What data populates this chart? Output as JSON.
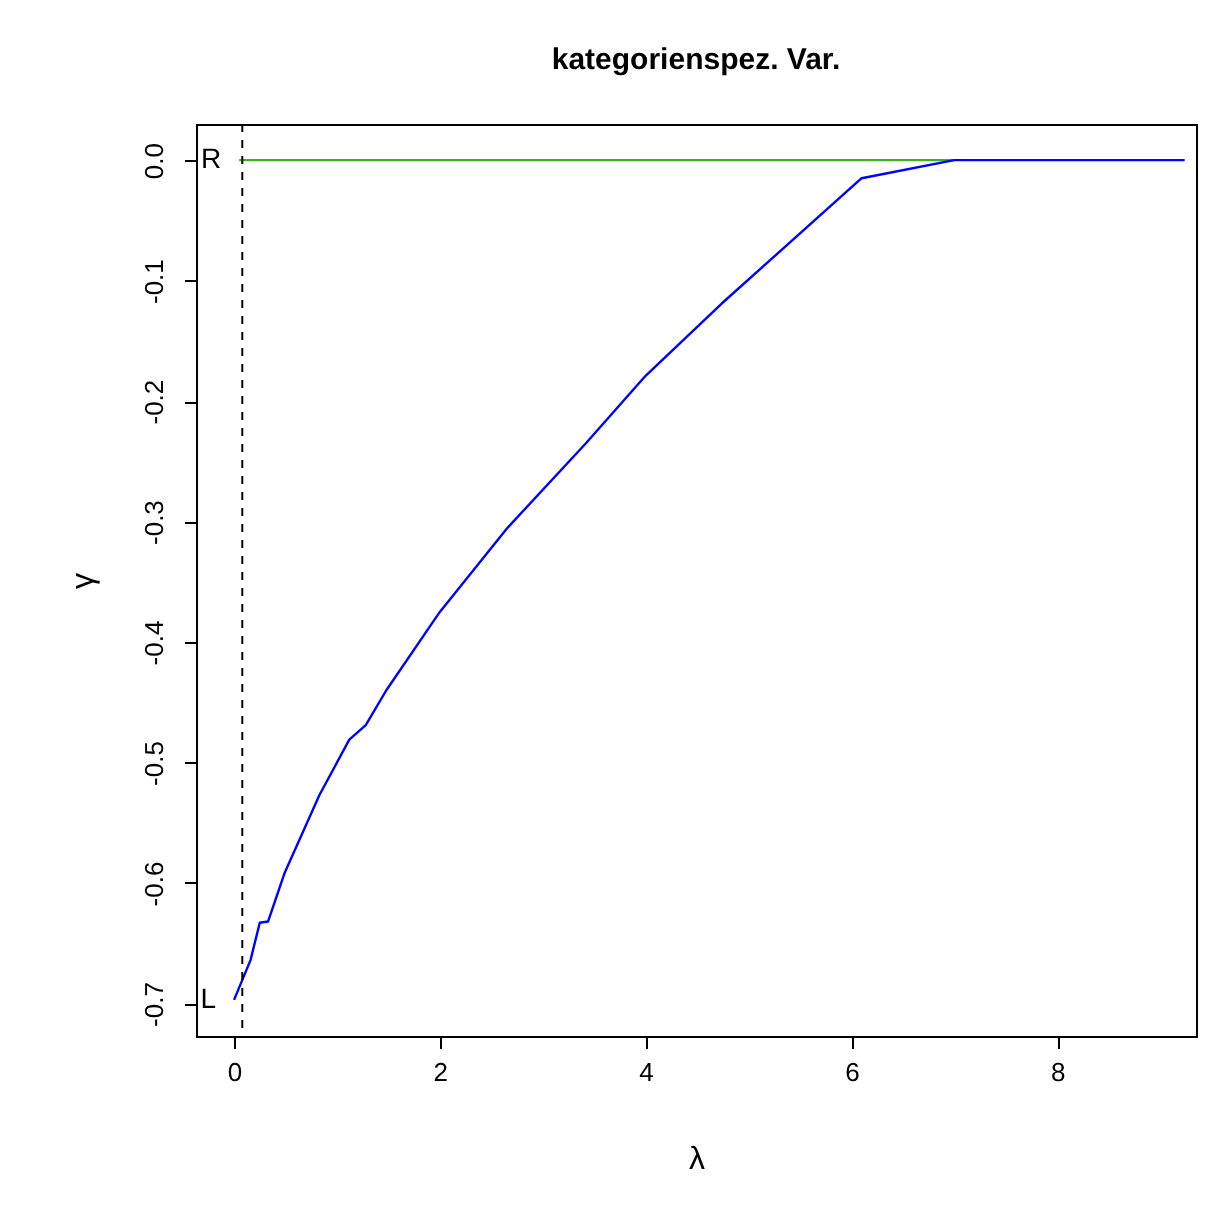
{
  "chart_data": {
    "type": "line",
    "title": "kategorienspez. Var.",
    "xlabel": "λ",
    "ylabel": "γ",
    "xlim": [
      -0.37,
      9.35
    ],
    "ylim": [
      -0.727,
      0.03
    ],
    "xticks": [
      0,
      2,
      4,
      6,
      8
    ],
    "yticks": [
      {
        "value": -0.7,
        "label": "-0.7"
      },
      {
        "value": -0.6,
        "label": "-0.6"
      },
      {
        "value": -0.5,
        "label": "-0.5"
      },
      {
        "value": -0.4,
        "label": "-0.4"
      },
      {
        "value": -0.3,
        "label": "-0.3"
      },
      {
        "value": -0.2,
        "label": "-0.2"
      },
      {
        "value": -0.1,
        "label": "-0.1"
      },
      {
        "value": 0,
        "label": "0.0"
      }
    ],
    "series": [
      {
        "color": "#3db31a",
        "x": [
          0.05,
          7.0
        ],
        "values": [
          0,
          0
        ]
      },
      {
        "color": "#0000ff",
        "x": [
          0,
          0.16,
          0.25,
          0.33,
          0.49,
          0.83,
          1.12,
          1.28,
          1.48,
          2.0,
          2.66,
          3.42,
          4.0,
          4.74,
          6.1,
          7.0,
          9.24
        ],
        "values": [
          -0.697,
          -0.664,
          -0.633,
          -0.632,
          -0.592,
          -0.527,
          -0.481,
          -0.469,
          -0.44,
          -0.375,
          -0.305,
          -0.235,
          -0.179,
          -0.119,
          -0.015,
          0,
          0
        ]
      }
    ],
    "ref_lines": [
      {
        "axis": "x",
        "value": 0.08,
        "color": "#000000",
        "line_style": "dashed"
      }
    ],
    "annotations": [
      {
        "text": "R",
        "x": 0.05,
        "y": 0
      },
      {
        "text": "L",
        "x": 0,
        "y": -0.697
      }
    ]
  }
}
